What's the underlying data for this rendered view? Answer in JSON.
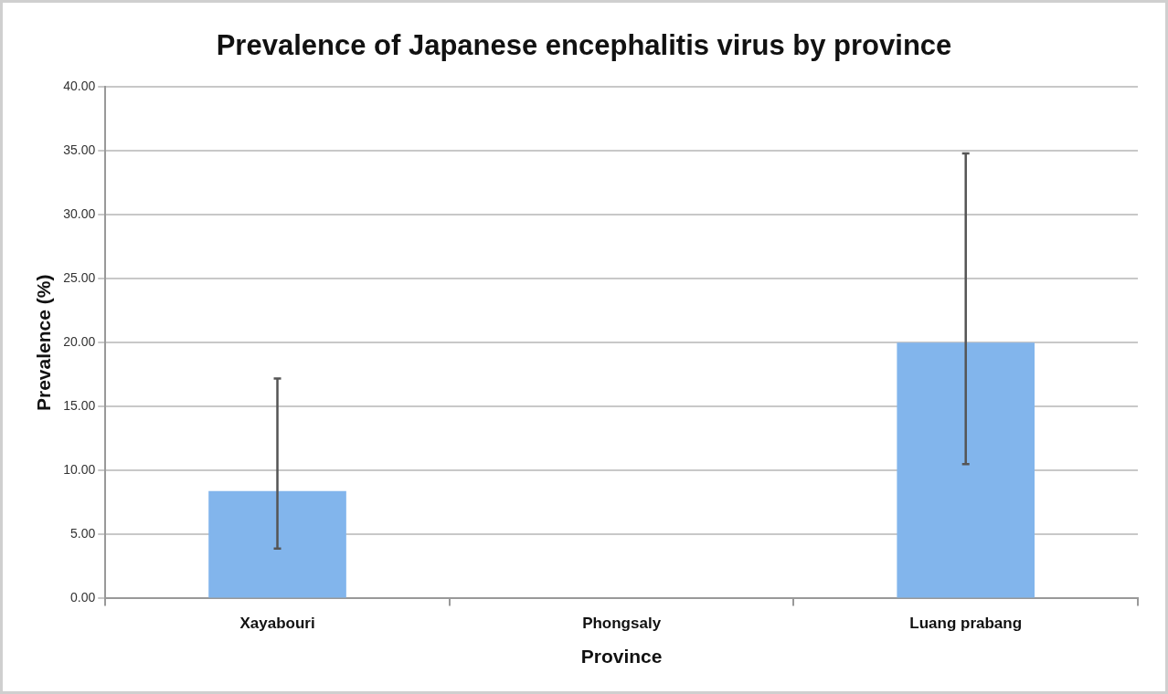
{
  "chart_data": {
    "type": "bar",
    "title": "Prevalence of Japanese encephalitis virus by province",
    "xlabel": "Province",
    "ylabel": "Prevalence (%)",
    "categories": [
      "Xayabouri",
      "Phongsaly",
      "Luang prabang"
    ],
    "values": [
      8.4,
      0,
      20.0
    ],
    "errors": [
      [
        3.9,
        17.2
      ],
      null,
      [
        10.5,
        34.8
      ]
    ],
    "color": "#82b5ec",
    "ylim": [
      0,
      40
    ],
    "yticks": [
      {
        "value": 0,
        "label": "0.00"
      },
      {
        "value": 5,
        "label": "5.00"
      },
      {
        "value": 10,
        "label": "10.00"
      },
      {
        "value": 15,
        "label": "15.00"
      },
      {
        "value": 20,
        "label": "20.00"
      },
      {
        "value": 25,
        "label": "25.00"
      },
      {
        "value": 30,
        "label": "30.00"
      },
      {
        "value": 35,
        "label": "35.00"
      },
      {
        "value": 40,
        "label": "40.00"
      }
    ],
    "grid": "y",
    "legend": false
  }
}
